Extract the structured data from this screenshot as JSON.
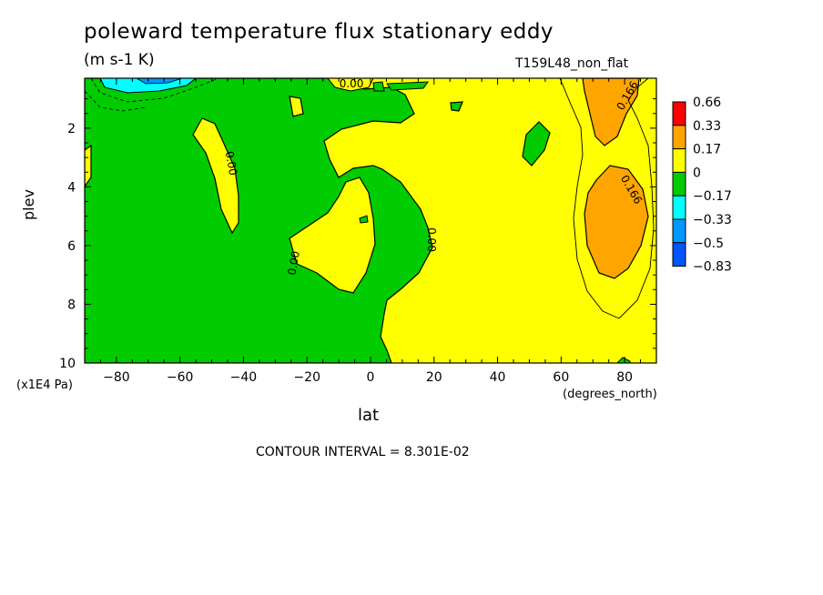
{
  "title": "poleward temperature flux stationary eddy",
  "units": "(m s-1 K)",
  "run_label": "T159L48_non_flat",
  "contour_interval": "CONTOUR INTERVAL = 8.301E-02",
  "chart_data": {
    "type": "heatmap",
    "xlabel": "lat",
    "xunits": "(degrees_north)",
    "ylabel": "plev",
    "yunits": "(x1E4 Pa)",
    "xlim": [
      -90,
      90
    ],
    "ylim": [
      10,
      0.3
    ],
    "x_ticks": [
      -80,
      -60,
      -40,
      -20,
      0,
      20,
      40,
      60,
      80
    ],
    "y_ticks": [
      2,
      4,
      6,
      8,
      10
    ],
    "legend": {
      "placement": "right",
      "levels": [
        "0.66",
        "0.33",
        "0.17",
        "0",
        "−0.17",
        "−0.33",
        "−0.5",
        "−0.83"
      ],
      "colors": [
        "#ff0000",
        "#ffa500",
        "#ffff00",
        "#00cc00",
        "#00ffff",
        "#0099ff",
        "#0055ff"
      ]
    },
    "contour_labels": [
      {
        "text": "0.00",
        "lat": -44,
        "plev": 3.2,
        "angle": 80
      },
      {
        "text": "0.00",
        "lat": -24,
        "plev": 6.6,
        "angle": -80
      },
      {
        "text": "0.00",
        "lat": 19,
        "plev": 5.8,
        "angle": 90
      },
      {
        "text": "0.00",
        "lat": -6,
        "plev": 0.5,
        "angle": 0
      },
      {
        "text": "0.166",
        "lat": 81,
        "plev": 0.9,
        "angle": -60
      },
      {
        "text": "0.166",
        "lat": 82,
        "plev": 4.1,
        "angle": 60
      }
    ],
    "regions": [
      {
        "level": "0 to 0.17",
        "color": "#ffff00",
        "description": "background"
      },
      {
        "level": "-0.17 to 0",
        "color": "#00cc00",
        "description": "southern hemisphere and tropics below"
      },
      {
        "level": "0.17 to 0.33",
        "color": "#ffa500",
        "description": "northern high latitudes"
      },
      {
        "level": "-0.5 to -0.17",
        "color": "#00ffff",
        "description": "top south"
      }
    ]
  }
}
